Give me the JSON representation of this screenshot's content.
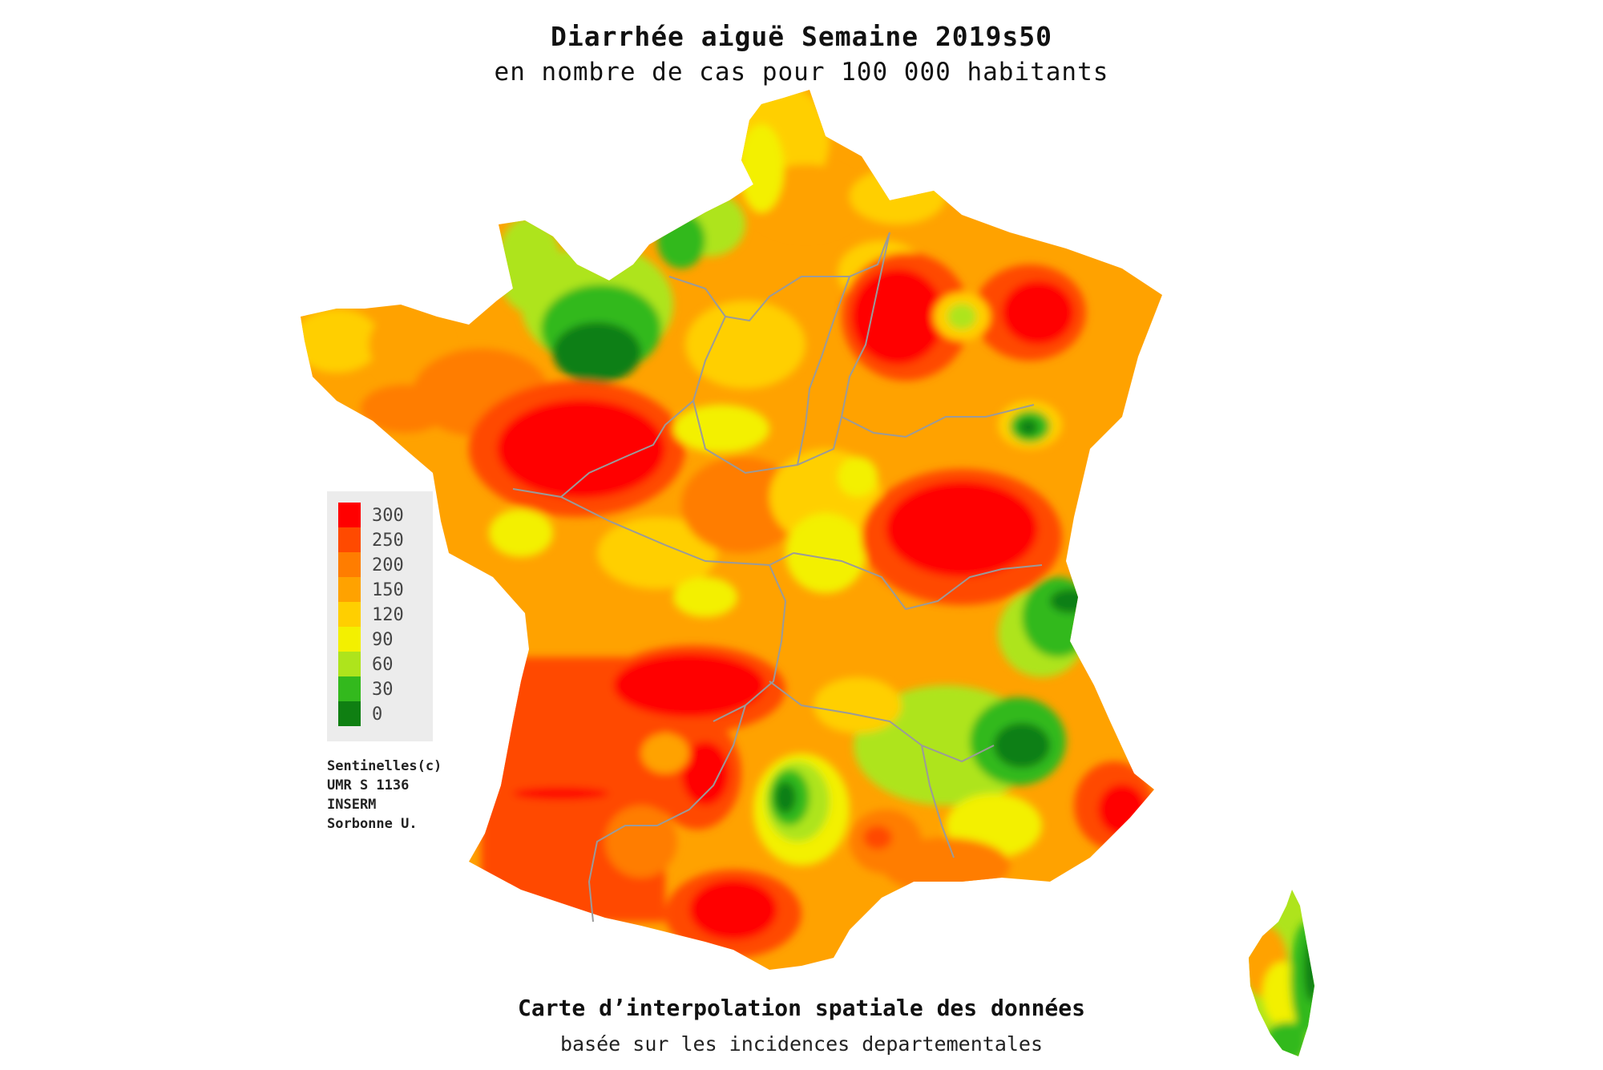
{
  "header": {
    "title": "Diarrhée aiguë Semaine 2019s50",
    "subtitle": "en nombre de cas pour 100 000 habitants"
  },
  "legend": {
    "colors": [
      "#ff0000",
      "#ff4a00",
      "#ff7d00",
      "#ffa200",
      "#ffcf00",
      "#f3f000",
      "#aee41c",
      "#33b91d",
      "#0f7f12"
    ],
    "ticks": [
      "300",
      "250",
      "200",
      "150",
      "120",
      "90",
      "60",
      "30",
      "0"
    ]
  },
  "credit": {
    "lines": [
      "Sentinelles(c)",
      "UMR S 1136",
      "INSERM",
      "Sorbonne U."
    ]
  },
  "footer": {
    "line1": "Carte d’interpolation spatiale des données",
    "line2": "basée sur les incidences departementales"
  },
  "map": {
    "regions": [
      "France métropolitaine",
      "Corse"
    ],
    "high_incidence_zones": [
      "Pays de la Loire",
      "Bourgogne-Franche-Comté",
      "Grand Est",
      "Nouvelle-Aquitaine",
      "Occitanie",
      "Provence-Alpes-Côte d'Azur"
    ],
    "low_incidence_zones": [
      "Normandie",
      "Auvergne-Rhône-Alpes (Alpes)",
      "Massif Central",
      "Corse (est)"
    ]
  }
}
